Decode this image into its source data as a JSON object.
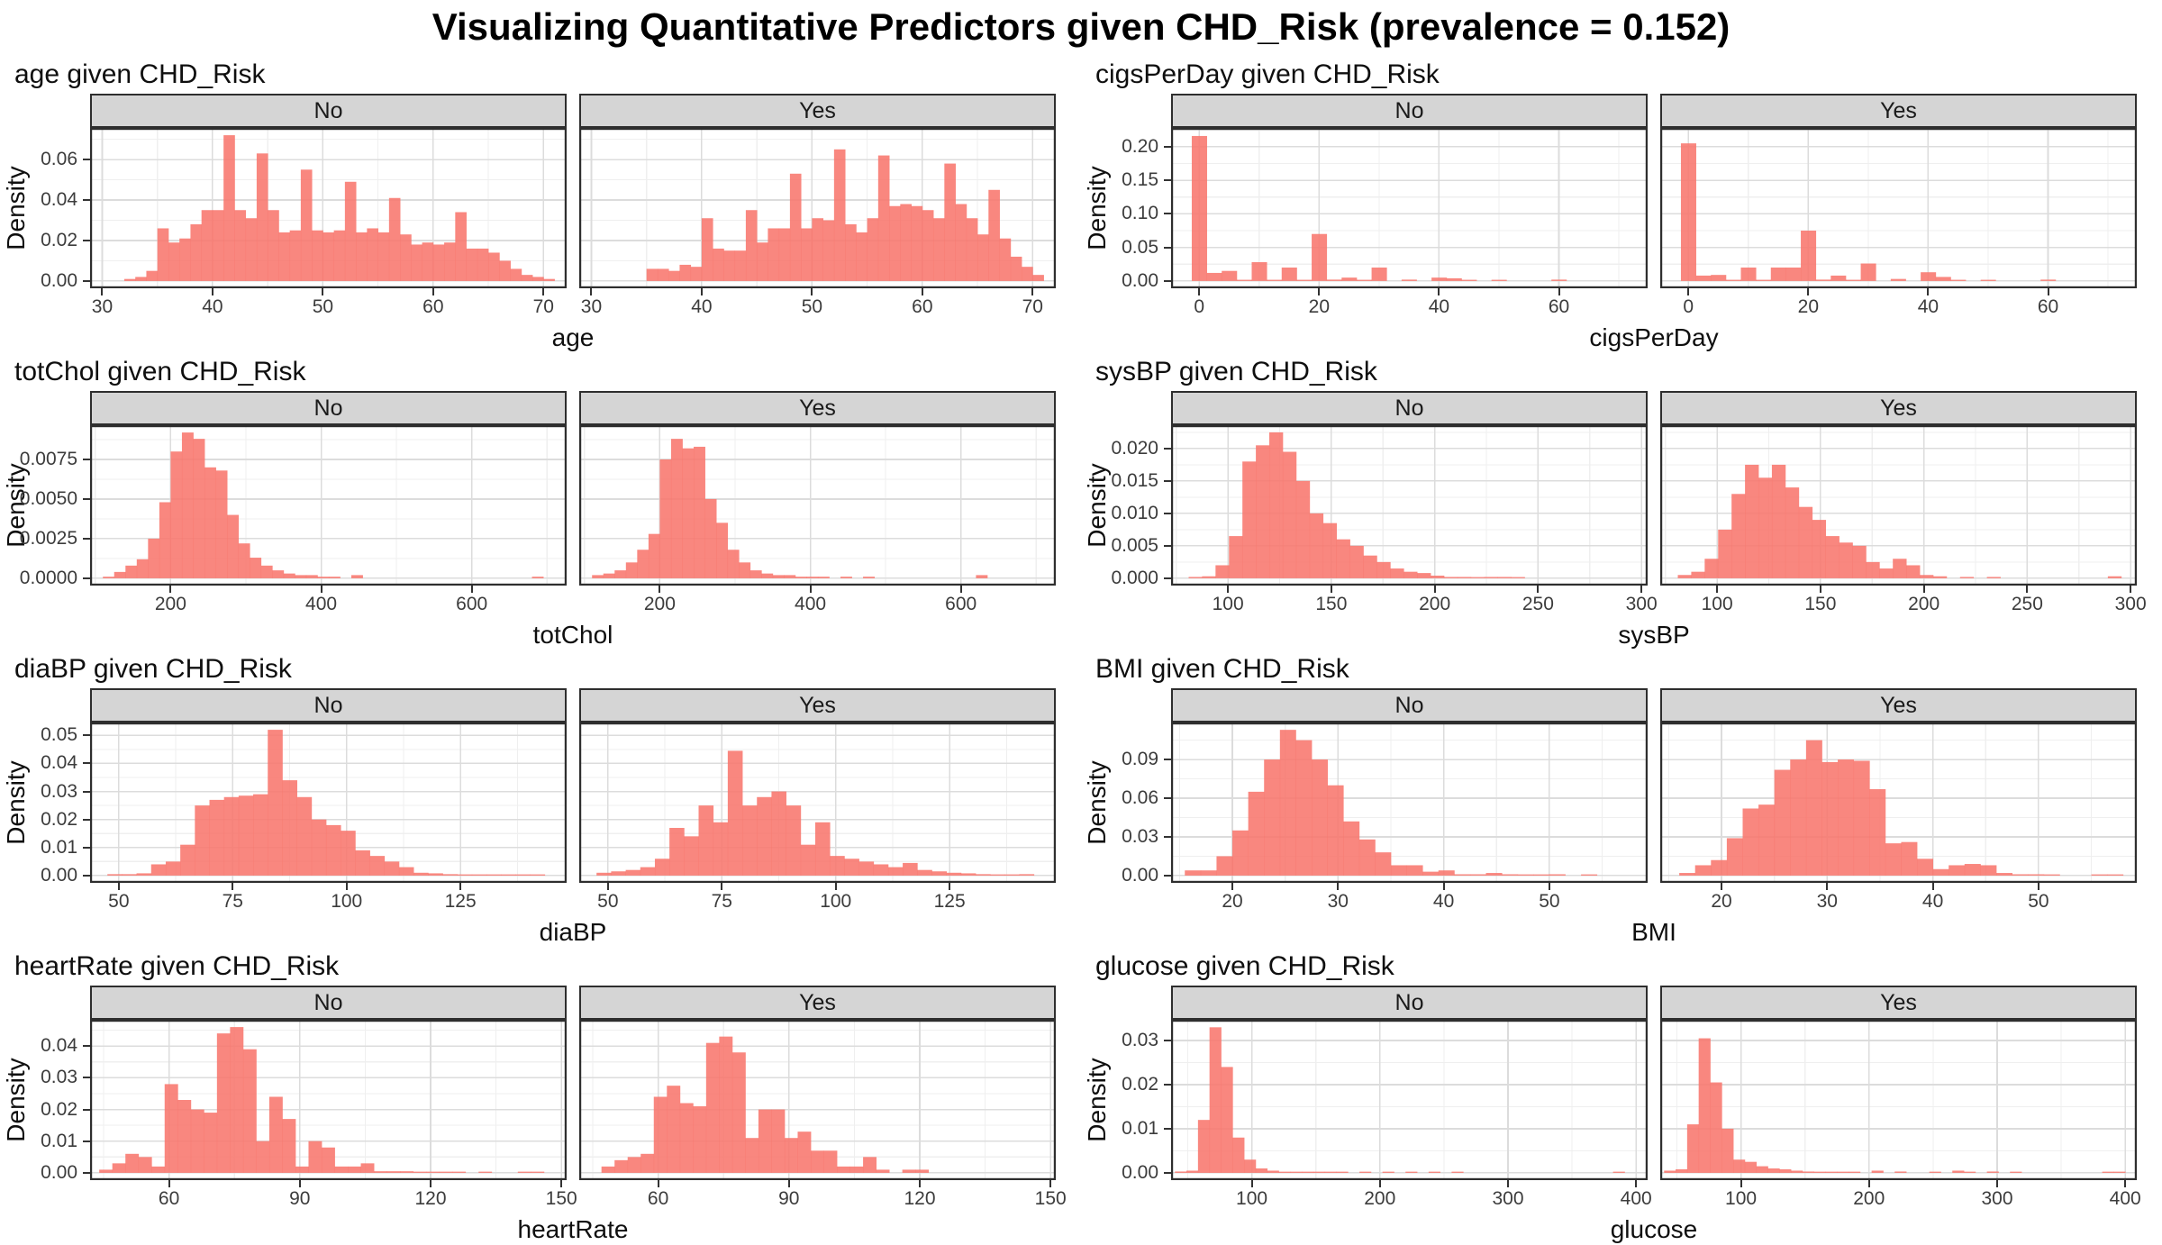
{
  "page_title": "Visualizing Quantitative Predictors given CHD_Risk (prevalence = 0.152)",
  "style": {
    "bar_color": "#F8766D",
    "bar_opacity": 0.88,
    "strip_bg": "#D5D5D5",
    "panel_border": "#2E2E2E",
    "grid_major": "#DCDCDC",
    "grid_minor": "#EFEFEF",
    "axis_text": "#3C3C3C",
    "title_text": "#0F0F0F"
  },
  "chart_data": [
    {
      "type": "bar",
      "title": "age given CHD_Risk",
      "xlabel": "age",
      "ylabel": "Density",
      "legend_position": "none",
      "grid": true,
      "x_range": [
        28.9,
        72.1
      ],
      "x_ticks": [
        30,
        40,
        50,
        60,
        70
      ],
      "x_tick_labels": [
        "30",
        "40",
        "50",
        "60",
        "70"
      ],
      "x_minor": [
        35,
        45,
        55,
        65
      ],
      "y_range": [
        -0.0036,
        0.0756
      ],
      "y_ticks": [
        0,
        0.02,
        0.04,
        0.06
      ],
      "y_tick_labels": [
        "0.00",
        "0.02",
        "0.04",
        "0.06"
      ],
      "y_minor": [
        0.01,
        0.03,
        0.05,
        0.07
      ],
      "bin_width": 1,
      "facets": [
        {
          "label": "No",
          "bin_start": 32,
          "values": [
            0.001,
            0.002,
            0.005,
            0.026,
            0.019,
            0.021,
            0.028,
            0.035,
            0.035,
            0.072,
            0.035,
            0.031,
            0.063,
            0.035,
            0.024,
            0.025,
            0.055,
            0.025,
            0.024,
            0.025,
            0.049,
            0.024,
            0.026,
            0.024,
            0.041,
            0.023,
            0.018,
            0.019,
            0.018,
            0.019,
            0.034,
            0.016,
            0.016,
            0.014,
            0.01,
            0.006,
            0.003,
            0.002,
            0.001
          ]
        },
        {
          "label": "Yes",
          "bin_start": 35,
          "values": [
            0.006,
            0.006,
            0.005,
            0.008,
            0.007,
            0.031,
            0.016,
            0.015,
            0.015,
            0.035,
            0.019,
            0.026,
            0.026,
            0.053,
            0.026,
            0.031,
            0.03,
            0.065,
            0.028,
            0.024,
            0.031,
            0.062,
            0.037,
            0.038,
            0.037,
            0.035,
            0.031,
            0.058,
            0.038,
            0.031,
            0.023,
            0.045,
            0.021,
            0.012,
            0.007,
            0.003
          ]
        }
      ]
    },
    {
      "type": "bar",
      "title": "cigsPerDay given CHD_Risk",
      "xlabel": "cigsPerDay",
      "ylabel": "Density",
      "legend_position": "none",
      "grid": true,
      "x_range": [
        -4.7,
        74.8
      ],
      "x_ticks": [
        0,
        20,
        40,
        60
      ],
      "x_tick_labels": [
        "0",
        "20",
        "40",
        "60"
      ],
      "x_minor": [
        10,
        30,
        50,
        70
      ],
      "y_range": [
        -0.0109,
        0.228
      ],
      "y_ticks": [
        0,
        0.05,
        0.1,
        0.15,
        0.2
      ],
      "y_tick_labels": [
        "0.00",
        "0.05",
        "0.10",
        "0.15",
        "0.20"
      ],
      "y_minor": [
        0.025,
        0.075,
        0.125,
        0.175,
        0.225
      ],
      "bin_width": 2.5,
      "facets": [
        {
          "label": "No",
          "bin_start": -1.25,
          "values": [
            0.216,
            0.012,
            0.015,
            0.001,
            0.028,
            0.001,
            0.02,
            0.001,
            0.07,
            0.002,
            0.005,
            0.001,
            0.02,
            0,
            0.002,
            0,
            0.005,
            0.004,
            0.001,
            0,
            0.001,
            0,
            0,
            0,
            0.002
          ]
        },
        {
          "label": "Yes",
          "bin_start": -1.25,
          "values": [
            0.205,
            0.008,
            0.009,
            0.001,
            0.02,
            0.001,
            0.02,
            0.02,
            0.075,
            0.002,
            0.008,
            0.001,
            0.026,
            0,
            0.003,
            0,
            0.013,
            0.006,
            0.001,
            0,
            0.001,
            0,
            0,
            0,
            0.002
          ]
        }
      ]
    },
    {
      "type": "bar",
      "title": "totChol given CHD_Risk",
      "xlabel": "totChol",
      "ylabel": "Density",
      "legend_position": "none",
      "grid": true,
      "x_range": [
        93,
        726
      ],
      "x_ticks": [
        200,
        400,
        600
      ],
      "x_tick_labels": [
        "200",
        "400",
        "600"
      ],
      "x_minor": [
        100,
        300,
        500,
        700
      ],
      "y_range": [
        -0.00046,
        0.00966
      ],
      "y_ticks": [
        0,
        0.0025,
        0.005,
        0.0075
      ],
      "y_tick_labels": [
        "0.0000",
        "0.0025",
        "0.0050",
        "0.0075"
      ],
      "y_minor": [
        0.00125,
        0.00375,
        0.00625,
        0.00875
      ],
      "bin_width": 15,
      "facets": [
        {
          "label": "No",
          "bin_start": 110,
          "values": [
            0.0001,
            0.0004,
            0.0008,
            0.0012,
            0.0025,
            0.0048,
            0.008,
            0.0092,
            0.0088,
            0.007,
            0.0068,
            0.004,
            0.0022,
            0.0013,
            0.0008,
            0.0005,
            0.0003,
            0.0002,
            0.0002,
            0.0001,
            0.0001,
            0,
            0.0002,
            0,
            0,
            0,
            0,
            0,
            0,
            0,
            0,
            0,
            0,
            0,
            0,
            0,
            0,
            0,
            0.0001
          ]
        },
        {
          "label": "Yes",
          "bin_start": 110,
          "values": [
            0.0002,
            0.0003,
            0.0005,
            0.001,
            0.0018,
            0.0028,
            0.0075,
            0.0088,
            0.0082,
            0.0083,
            0.005,
            0.0035,
            0.0018,
            0.001,
            0.0005,
            0.0003,
            0.0002,
            0.0002,
            0.0001,
            0.0001,
            0.0001,
            0,
            0.0001,
            0,
            0.0001,
            0,
            0,
            0,
            0,
            0,
            0,
            0,
            0,
            0,
            0.0002
          ]
        }
      ]
    },
    {
      "type": "bar",
      "title": "sysBP given CHD_Risk",
      "xlabel": "sysBP",
      "ylabel": "Density",
      "legend_position": "none",
      "grid": true,
      "x_range": [
        72.5,
        303
      ],
      "x_ticks": [
        100,
        150,
        200,
        250,
        300
      ],
      "x_tick_labels": [
        "100",
        "150",
        "200",
        "250",
        "300"
      ],
      "x_minor": [
        75,
        125,
        175,
        225,
        275
      ],
      "y_range": [
        -0.00113,
        0.0236
      ],
      "y_ticks": [
        0,
        0.005,
        0.01,
        0.015,
        0.02
      ],
      "y_tick_labels": [
        "0.000",
        "0.005",
        "0.010",
        "0.015",
        "0.020"
      ],
      "y_minor": [
        0.0025,
        0.0075,
        0.0125,
        0.0175,
        0.0225
      ],
      "bin_width": 6.5,
      "facets": [
        {
          "label": "No",
          "bin_start": 81,
          "values": [
            0.0002,
            0.0003,
            0.002,
            0.0065,
            0.018,
            0.0205,
            0.0225,
            0.0195,
            0.015,
            0.01,
            0.0085,
            0.006,
            0.005,
            0.0035,
            0.0025,
            0.0015,
            0.001,
            0.0008,
            0.0004,
            0.0002,
            0.0002,
            0.0001,
            0.0002,
            0.0002,
            0.0001
          ]
        },
        {
          "label": "Yes",
          "bin_start": 81,
          "values": [
            0.0005,
            0.001,
            0.003,
            0.0075,
            0.013,
            0.0175,
            0.0155,
            0.0175,
            0.014,
            0.011,
            0.009,
            0.0065,
            0.0055,
            0.005,
            0.0025,
            0.0015,
            0.003,
            0.002,
            0.0005,
            0.0003,
            0,
            0.0002,
            0,
            0.0002,
            0,
            0,
            0,
            0,
            0,
            0,
            0,
            0,
            0.0003
          ]
        }
      ]
    },
    {
      "type": "bar",
      "title": "diaBP given CHD_Risk",
      "xlabel": "diaBP",
      "ylabel": "Density",
      "legend_position": "none",
      "grid": true,
      "x_range": [
        43.7,
        148.3
      ],
      "x_ticks": [
        50,
        75,
        100,
        125
      ],
      "x_tick_labels": [
        "50",
        "75",
        "100",
        "125"
      ],
      "x_minor": [
        62.5,
        87.5,
        112.5,
        137.5
      ],
      "y_range": [
        -0.0026,
        0.0546
      ],
      "y_ticks": [
        0,
        0.01,
        0.02,
        0.03,
        0.04,
        0.05
      ],
      "y_tick_labels": [
        "0.00",
        "0.01",
        "0.02",
        "0.03",
        "0.04",
        "0.05"
      ],
      "y_minor": [
        0.005,
        0.015,
        0.025,
        0.035,
        0.045
      ],
      "bin_width": 3.2,
      "facets": [
        {
          "label": "No",
          "bin_start": 47.5,
          "values": [
            0.0005,
            0.0005,
            0.0008,
            0.004,
            0.005,
            0.011,
            0.025,
            0.027,
            0.028,
            0.0285,
            0.029,
            0.052,
            0.034,
            0.028,
            0.02,
            0.018,
            0.016,
            0.009,
            0.007,
            0.005,
            0.003,
            0.001,
            0.0008,
            0.0005,
            0.0003,
            0.0002,
            0.0002,
            0.0001,
            0.0001,
            0.0001
          ]
        },
        {
          "label": "Yes",
          "bin_start": 47.5,
          "values": [
            0.001,
            0.0015,
            0.002,
            0.003,
            0.006,
            0.017,
            0.014,
            0.025,
            0.019,
            0.0445,
            0.025,
            0.028,
            0.03,
            0.025,
            0.011,
            0.019,
            0.007,
            0.006,
            0.005,
            0.004,
            0.003,
            0.0045,
            0.002,
            0.0015,
            0.001,
            0.0008,
            0.0005,
            0.0003,
            0.0002,
            0.0005
          ]
        }
      ]
    },
    {
      "type": "bar",
      "title": "BMI given CHD_Risk",
      "xlabel": "BMI",
      "ylabel": "Density",
      "legend_position": "none",
      "grid": true,
      "x_range": [
        14.2,
        59.3
      ],
      "x_ticks": [
        20,
        30,
        40,
        50
      ],
      "x_tick_labels": [
        "20",
        "30",
        "40",
        "50"
      ],
      "x_minor": [
        15,
        25,
        35,
        45,
        55
      ],
      "y_range": [
        -0.00565,
        0.1187
      ],
      "y_ticks": [
        0,
        0.03,
        0.06,
        0.09
      ],
      "y_tick_labels": [
        "0.00",
        "0.03",
        "0.06",
        "0.09"
      ],
      "y_minor": [
        0.015,
        0.045,
        0.075,
        0.105
      ],
      "bin_width": 1.5,
      "facets": [
        {
          "label": "No",
          "bin_start": 15.5,
          "values": [
            0.004,
            0.004,
            0.015,
            0.035,
            0.065,
            0.09,
            0.113,
            0.105,
            0.09,
            0.07,
            0.042,
            0.028,
            0.018,
            0.008,
            0.008,
            0.003,
            0.004,
            0.001,
            0.001,
            0.002,
            0.001,
            0.0005,
            0.0005,
            0.001,
            0,
            0.0005
          ]
        },
        {
          "label": "Yes",
          "bin_start": 16,
          "values": [
            0.002,
            0.008,
            0.012,
            0.029,
            0.052,
            0.055,
            0.082,
            0.09,
            0.105,
            0.088,
            0.09,
            0.089,
            0.067,
            0.025,
            0.026,
            0.013,
            0.005,
            0.008,
            0.009,
            0.008,
            0.002,
            0.001,
            0.001,
            0.0005,
            0,
            0,
            0.0005,
            0.0005
          ]
        }
      ]
    },
    {
      "type": "bar",
      "title": "heartRate given CHD_Risk",
      "xlabel": "heartRate",
      "ylabel": "Density",
      "legend_position": "none",
      "grid": true,
      "x_range": [
        41.9,
        151.2
      ],
      "x_ticks": [
        60,
        90,
        120,
        150
      ],
      "x_tick_labels": [
        "60",
        "90",
        "120",
        "150"
      ],
      "x_minor": [
        45,
        75,
        105,
        135
      ],
      "y_range": [
        -0.0023,
        0.0483
      ],
      "y_ticks": [
        0,
        0.01,
        0.02,
        0.03,
        0.04
      ],
      "y_tick_labels": [
        "0.00",
        "0.01",
        "0.02",
        "0.03",
        "0.04"
      ],
      "y_minor": [
        0.005,
        0.015,
        0.025,
        0.035,
        0.045
      ],
      "bin_width": 3,
      "facets": [
        {
          "label": "No",
          "bin_start": 44,
          "values": [
            0.001,
            0.003,
            0.006,
            0.005,
            0.002,
            0.028,
            0.023,
            0.02,
            0.019,
            0.044,
            0.046,
            0.039,
            0.01,
            0.024,
            0.017,
            0.002,
            0.01,
            0.008,
            0.002,
            0.002,
            0.003,
            0.0005,
            0.0005,
            0.0005,
            0.0003,
            0.0003,
            0.0002,
            0.0002,
            0,
            0.0001,
            0,
            0,
            0.0002,
            0.0001
          ]
        },
        {
          "label": "Yes",
          "bin_start": 47,
          "values": [
            0.002,
            0.004,
            0.005,
            0.006,
            0.024,
            0.0275,
            0.022,
            0.021,
            0.041,
            0.043,
            0.038,
            0.011,
            0.02,
            0.02,
            0.011,
            0.013,
            0.007,
            0.007,
            0.002,
            0.002,
            0.005,
            0.001,
            0,
            0.001,
            0.001
          ]
        }
      ]
    },
    {
      "type": "bar",
      "title": "glucose given CHD_Risk",
      "xlabel": "glucose",
      "ylabel": "Density",
      "legend_position": "none",
      "grid": true,
      "x_range": [
        37,
        409
      ],
      "x_ticks": [
        100,
        200,
        300,
        400
      ],
      "x_tick_labels": [
        "100",
        "200",
        "300",
        "400"
      ],
      "x_minor": [
        50,
        150,
        250,
        350
      ],
      "y_range": [
        -0.00165,
        0.0347
      ],
      "y_ticks": [
        0,
        0.01,
        0.02,
        0.03
      ],
      "y_tick_labels": [
        "0.00",
        "0.01",
        "0.02",
        "0.03"
      ],
      "y_minor": [
        0.005,
        0.015,
        0.025
      ],
      "bin_width": 9,
      "facets": [
        {
          "label": "No",
          "bin_start": 40,
          "values": [
            0.0003,
            0.0005,
            0.012,
            0.033,
            0.024,
            0.008,
            0.003,
            0.001,
            0.0005,
            0.0002,
            0.0002,
            0.0001,
            0.0001,
            0.0002,
            0.0001,
            0,
            0.0001,
            0,
            0.0001,
            0,
            0.0001,
            0,
            0.0001,
            0,
            0.0001,
            0,
            0,
            0,
            0,
            0,
            0,
            0,
            0,
            0,
            0,
            0,
            0,
            0,
            0.0001
          ]
        },
        {
          "label": "Yes",
          "bin_start": 40,
          "values": [
            0.0005,
            0.0008,
            0.011,
            0.0305,
            0.0205,
            0.01,
            0.003,
            0.0025,
            0.0015,
            0.001,
            0.0008,
            0.0005,
            0.0003,
            0.0002,
            0.0002,
            0.0001,
            0.0001,
            0,
            0.0005,
            0,
            0.0003,
            0,
            0,
            0.0002,
            0,
            0.0005,
            0.0002,
            0,
            0.0003,
            0,
            0.0002,
            0,
            0,
            0,
            0,
            0,
            0,
            0,
            0.0002,
            0.0001
          ]
        }
      ]
    }
  ]
}
